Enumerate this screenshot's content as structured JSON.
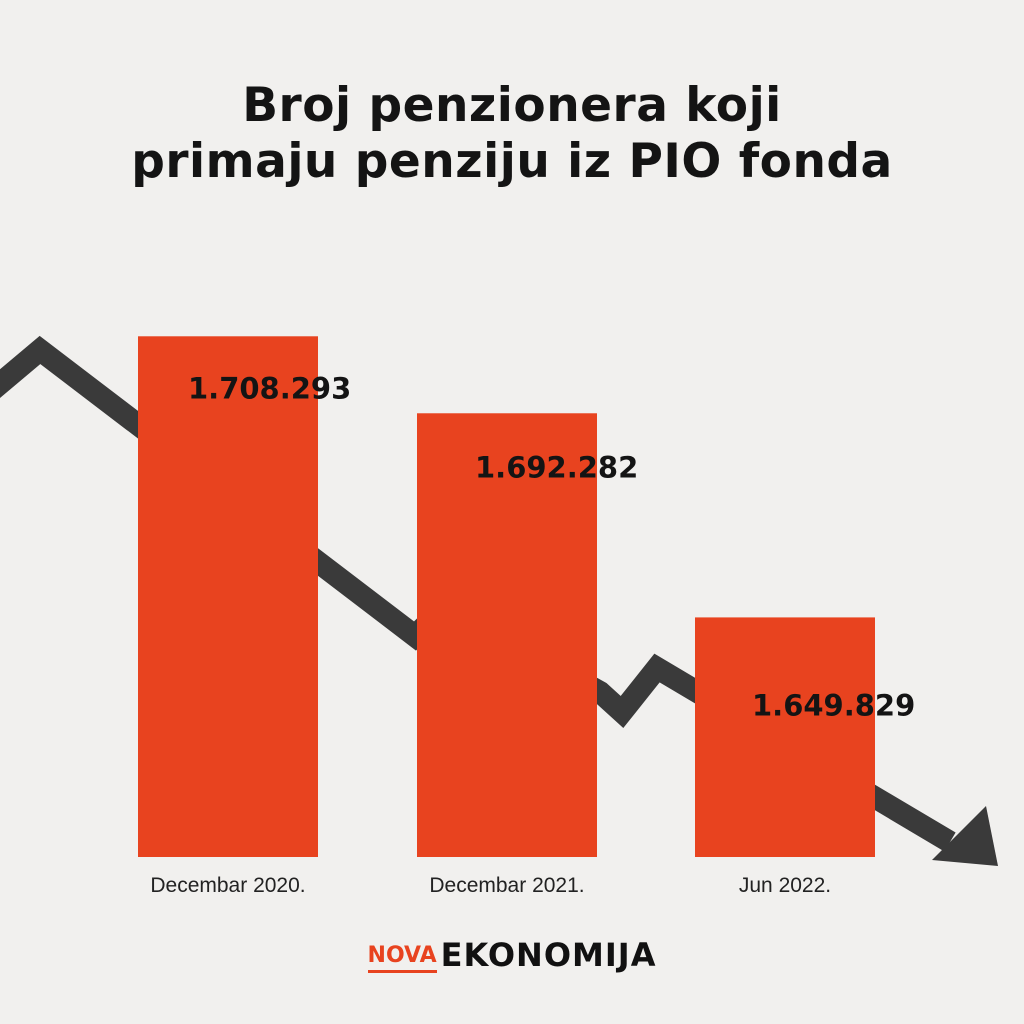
{
  "chart_data": {
    "type": "bar",
    "title": "Broj penzionera koji primaju penziju iz PIO fonda",
    "title_lines": [
      "Broj penzionera koji",
      "primaju penziju iz PIO fonda"
    ],
    "categories": [
      "Decembar 2020.",
      "Decembar 2021.",
      "Jun 2022."
    ],
    "values": [
      1708293,
      1692282,
      1649829
    ],
    "data_labels": [
      "1.708.293",
      "1.692.282",
      "1.649.829"
    ],
    "xlabel": "",
    "ylabel": "",
    "ylim": [
      1600000,
      1720000
    ],
    "grid": false,
    "legend": "none",
    "colors": {
      "bar": "#e8431f",
      "trend_arrow": "#3a3a3a",
      "text": "#141414",
      "background": "#f1f0ee"
    }
  },
  "logo": {
    "part1": "NOVA",
    "part2": "EKONOMIJA"
  }
}
